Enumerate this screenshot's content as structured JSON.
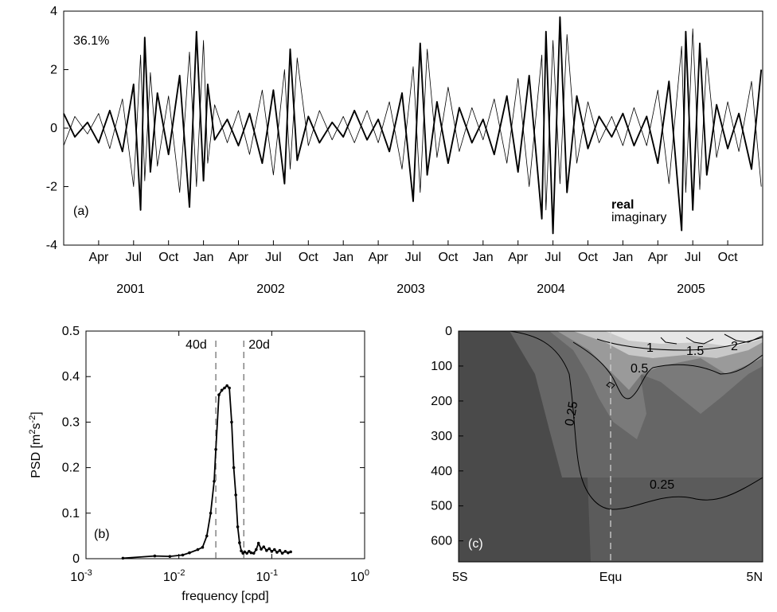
{
  "chart_data": [
    {
      "panel": "(a)",
      "type": "line",
      "annotation": "36.1%",
      "ylim": [
        -4,
        4
      ],
      "yticks": [
        "4",
        "2",
        "0",
        "-2",
        "-4"
      ],
      "month_ticks": [
        "Apr",
        "Jul",
        "Oct",
        "Jan",
        "Apr",
        "Jul",
        "Oct",
        "Jan",
        "Apr",
        "Jul",
        "Oct",
        "Jan",
        "Apr",
        "Jul",
        "Oct",
        "Jan",
        "Apr",
        "Jul",
        "Oct"
      ],
      "years": [
        "2001",
        "2002",
        "2003",
        "2004",
        "2005"
      ],
      "legend": [
        "real",
        "imaginary"
      ],
      "series": [
        {
          "name": "real",
          "style": "thick",
          "x": [
            2001.0,
            2001.08,
            2001.17,
            2001.25,
            2001.33,
            2001.42,
            2001.5,
            2001.55,
            2001.58,
            2001.62,
            2001.67,
            2001.75,
            2001.83,
            2001.9,
            2001.95,
            2002.0,
            2002.03,
            2002.08,
            2002.17,
            2002.25,
            2002.33,
            2002.42,
            2002.5,
            2002.58,
            2002.62,
            2002.67,
            2002.75,
            2002.83,
            2002.92,
            2003.0,
            2003.08,
            2003.17,
            2003.25,
            2003.33,
            2003.42,
            2003.5,
            2003.55,
            2003.6,
            2003.67,
            2003.75,
            2003.83,
            2003.92,
            2004.0,
            2004.08,
            2004.17,
            2004.25,
            2004.33,
            2004.42,
            2004.45,
            2004.5,
            2004.55,
            2004.6,
            2004.67,
            2004.75,
            2004.83,
            2004.92,
            2005.0,
            2005.08,
            2005.17,
            2005.25,
            2005.33,
            2005.42,
            2005.45,
            2005.5,
            2005.55,
            2005.6,
            2005.67,
            2005.75,
            2005.83,
            2005.92,
            2005.99
          ],
          "y": [
            0.5,
            -0.3,
            0.2,
            -0.5,
            0.6,
            -0.8,
            1.5,
            -2.8,
            3.1,
            -1.5,
            1.2,
            -0.9,
            1.8,
            -2.7,
            3.3,
            -1.8,
            1.5,
            -0.4,
            0.3,
            -0.6,
            0.5,
            -1.2,
            1.3,
            -1.9,
            2.7,
            -1.1,
            0.4,
            -0.5,
            0.2,
            -0.3,
            0.6,
            -0.4,
            0.3,
            -0.8,
            1.2,
            -2.5,
            2.9,
            -1.6,
            0.9,
            -1.2,
            0.7,
            -0.5,
            0.3,
            -0.9,
            1.1,
            -1.5,
            1.8,
            -3.1,
            3.3,
            -3.6,
            3.8,
            -2.2,
            1.1,
            -0.7,
            0.4,
            -0.3,
            0.5,
            -0.6,
            0.4,
            -1.2,
            1.6,
            -3.5,
            3.3,
            -2.8,
            2.9,
            -1.6,
            0.8,
            -0.7,
            0.5,
            -1.4,
            2.0
          ]
        },
        {
          "name": "imaginary",
          "style": "thin",
          "x": [
            2001.0,
            2001.08,
            2001.17,
            2001.25,
            2001.33,
            2001.42,
            2001.5,
            2001.55,
            2001.58,
            2001.62,
            2001.67,
            2001.75,
            2001.83,
            2001.9,
            2001.95,
            2002.0,
            2002.03,
            2002.08,
            2002.17,
            2002.25,
            2002.33,
            2002.42,
            2002.5,
            2002.58,
            2002.62,
            2002.67,
            2002.75,
            2002.83,
            2002.92,
            2003.0,
            2003.08,
            2003.17,
            2003.25,
            2003.33,
            2003.42,
            2003.5,
            2003.55,
            2003.6,
            2003.67,
            2003.75,
            2003.83,
            2003.92,
            2004.0,
            2004.08,
            2004.17,
            2004.25,
            2004.33,
            2004.42,
            2004.45,
            2004.5,
            2004.55,
            2004.6,
            2004.67,
            2004.75,
            2004.83,
            2004.92,
            2005.0,
            2005.08,
            2005.17,
            2005.25,
            2005.33,
            2005.42,
            2005.45,
            2005.5,
            2005.55,
            2005.6,
            2005.67,
            2005.75,
            2005.83,
            2005.92,
            2005.99
          ],
          "y": [
            -0.6,
            0.4,
            -0.2,
            0.5,
            -0.7,
            1.0,
            -2.0,
            2.5,
            -1.8,
            1.9,
            -1.3,
            1.1,
            -2.2,
            2.6,
            -2.0,
            3.0,
            -1.2,
            0.8,
            -0.5,
            0.6,
            -0.9,
            1.3,
            -1.6,
            2.0,
            -1.4,
            2.4,
            -0.6,
            0.6,
            -0.4,
            0.4,
            -0.5,
            0.6,
            -0.5,
            0.9,
            -1.4,
            2.1,
            -2.2,
            2.7,
            -1.0,
            1.4,
            -0.8,
            0.7,
            -0.4,
            1.0,
            -1.2,
            1.7,
            -2.0,
            2.5,
            -2.8,
            3.0,
            -1.9,
            3.2,
            -1.2,
            0.9,
            -0.5,
            0.4,
            -0.6,
            0.7,
            -0.6,
            1.3,
            -1.9,
            2.8,
            -2.2,
            3.4,
            -2.1,
            2.4,
            -1.0,
            0.9,
            -0.8,
            1.6,
            -2.0
          ]
        }
      ]
    },
    {
      "panel": "(b)",
      "type": "line",
      "xlabel": "frequency [cpd]",
      "ylabel": "PSD [m²s⁻²]",
      "ylabel_base": "PSD [m",
      "ylabel_sup1": "2",
      "ylabel_mid": "s",
      "ylabel_sup2": "-2",
      "ylabel_end": "]",
      "xscale": "log",
      "xlim": [
        0.001,
        1
      ],
      "ylim": [
        0,
        0.5
      ],
      "yticks": [
        "0",
        "0.1",
        "0.2",
        "0.3",
        "0.4",
        "0.5"
      ],
      "xticks_base": [
        "10",
        "10",
        "10",
        "10"
      ],
      "xticks_exp": [
        "-3",
        "-2",
        "-1",
        "0"
      ],
      "vlines": [
        {
          "x": 0.025,
          "label": "40d"
        },
        {
          "x": 0.05,
          "label": "20d"
        }
      ],
      "series": [
        {
          "name": "",
          "x": [
            0.0025,
            0.0055,
            0.008,
            0.011,
            0.013,
            0.016,
            0.018,
            0.02,
            0.022,
            0.024,
            0.025,
            0.027,
            0.029,
            0.031,
            0.033,
            0.035,
            0.037,
            0.039,
            0.041,
            0.043,
            0.045,
            0.047,
            0.049,
            0.051,
            0.054,
            0.057,
            0.06,
            0.064,
            0.068,
            0.072,
            0.077,
            0.082,
            0.088,
            0.094,
            0.1,
            0.107,
            0.114,
            0.122,
            0.13,
            0.14,
            0.15,
            0.16
          ],
          "y": [
            0.001,
            0.006,
            0.005,
            0.008,
            0.013,
            0.02,
            0.025,
            0.05,
            0.1,
            0.17,
            0.24,
            0.36,
            0.37,
            0.375,
            0.38,
            0.375,
            0.3,
            0.2,
            0.14,
            0.07,
            0.035,
            0.017,
            0.012,
            0.015,
            0.012,
            0.016,
            0.013,
            0.012,
            0.02,
            0.034,
            0.021,
            0.026,
            0.018,
            0.022,
            0.016,
            0.02,
            0.014,
            0.018,
            0.012,
            0.016,
            0.013,
            0.015
          ]
        }
      ]
    },
    {
      "panel": "(c)",
      "type": "heatmap",
      "yticks": [
        "0",
        "100",
        "200",
        "300",
        "400",
        "500",
        "600"
      ],
      "ylim": [
        660,
        0
      ],
      "xticks": [
        "5S",
        "Equ",
        "5N"
      ],
      "contour_labels": [
        "2",
        "1.5",
        "1",
        "0.5",
        "0.25",
        "0.25"
      ],
      "vline": "Equ"
    }
  ]
}
